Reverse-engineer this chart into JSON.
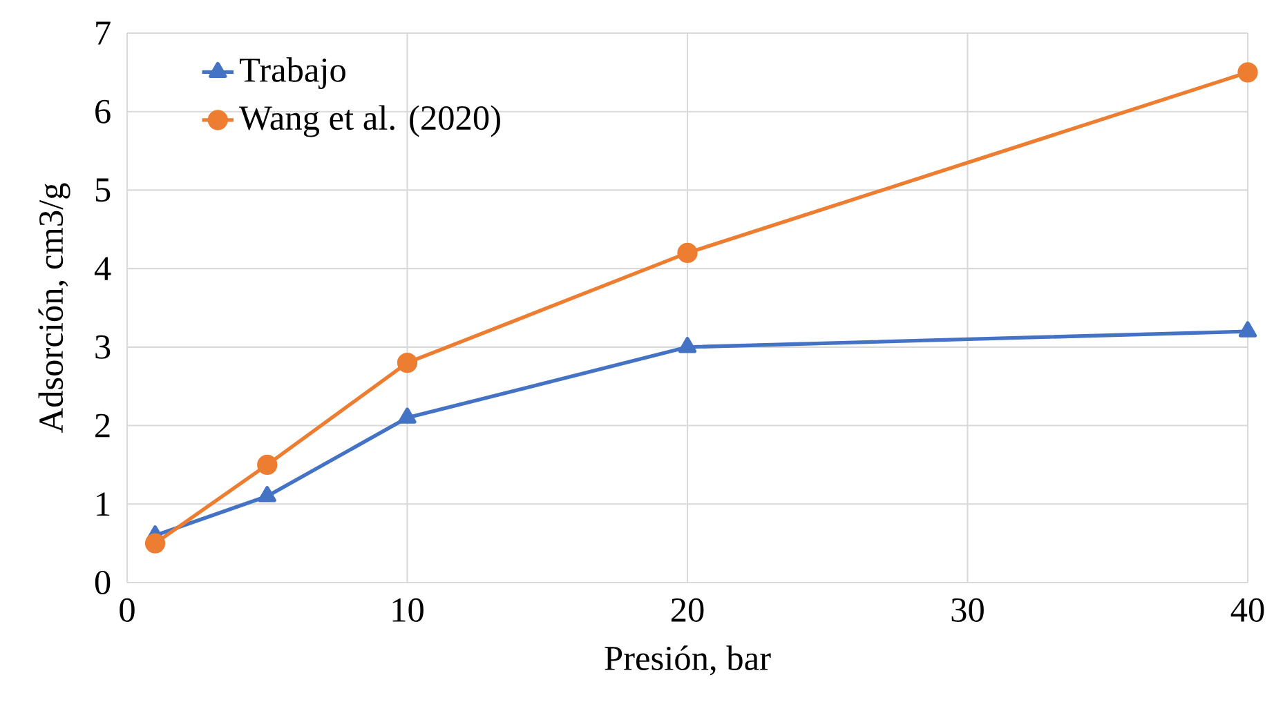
{
  "chart_data": {
    "type": "line",
    "xlabel": "Presión, bar",
    "ylabel": "Adsorción, cm3/g",
    "x": [
      1,
      5,
      10,
      20,
      40
    ],
    "series": [
      {
        "name": "Trabajo",
        "color": "#4472c4",
        "marker": "triangle",
        "values": [
          0.6,
          1.1,
          2.1,
          3.0,
          3.2
        ]
      },
      {
        "name": "Wang et al. (2020)",
        "color": "#ed7d31",
        "marker": "circle",
        "values": [
          0.5,
          1.5,
          2.8,
          4.2,
          6.5
        ]
      }
    ],
    "xlim": [
      0,
      40
    ],
    "xticks": [
      0,
      10,
      20,
      30,
      40
    ],
    "ylim": [
      0,
      7
    ],
    "yticks": [
      0,
      1,
      2,
      3,
      4,
      5,
      6,
      7
    ],
    "grid": true,
    "legend": "top left"
  }
}
